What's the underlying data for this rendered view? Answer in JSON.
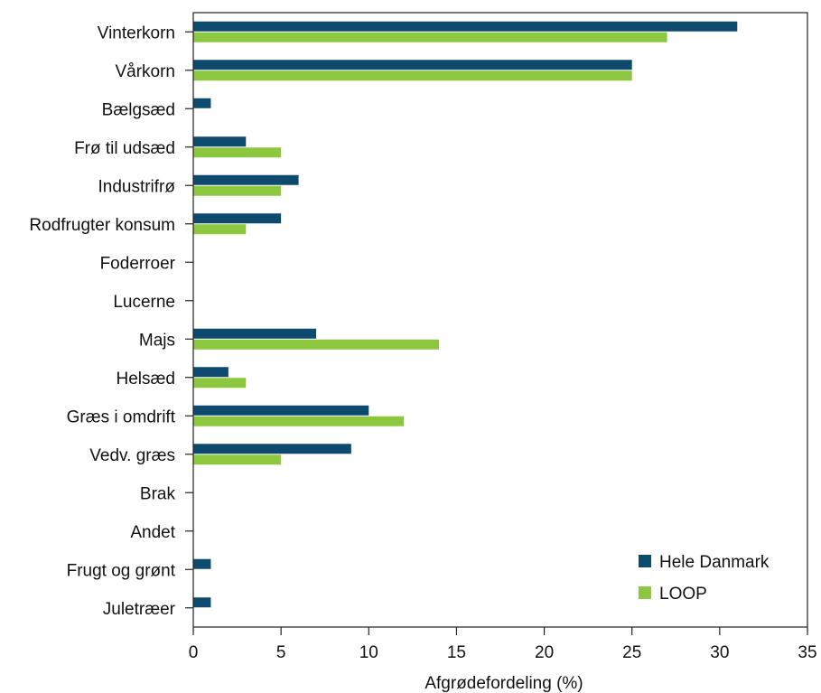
{
  "chart_data": {
    "type": "bar",
    "orientation": "horizontal",
    "categories": [
      "Vinterkorn",
      "Vårkorn",
      "Bælgsæd",
      "Frø til udsæd",
      "Industrifrø",
      "Rodfrugter konsum",
      "Foderroer",
      "Lucerne",
      "Majs",
      "Helsæd",
      "Græs i omdrift",
      "Vedv. græs",
      "Brak",
      "Andet",
      "Frugt og grønt",
      "Juletræer"
    ],
    "series": [
      {
        "name": "Hele Danmark",
        "color": "#0d4a6e",
        "values": [
          31,
          25,
          1,
          3,
          6,
          5,
          0,
          0,
          7,
          2,
          10,
          9,
          0,
          0,
          1,
          1
        ]
      },
      {
        "name": "LOOP",
        "color": "#8dc63f",
        "values": [
          27,
          25,
          0,
          5,
          5,
          3,
          0,
          0,
          14,
          3,
          12,
          5,
          0,
          0,
          0,
          0
        ]
      }
    ],
    "xlabel": "Afgrødefordeling (%)",
    "ylabel": "",
    "title": "",
    "xlim": [
      0,
      35
    ],
    "xticks": [
      0,
      5,
      10,
      15,
      20,
      25,
      30,
      35
    ],
    "grid": false,
    "legend_position": "bottom-right"
  }
}
